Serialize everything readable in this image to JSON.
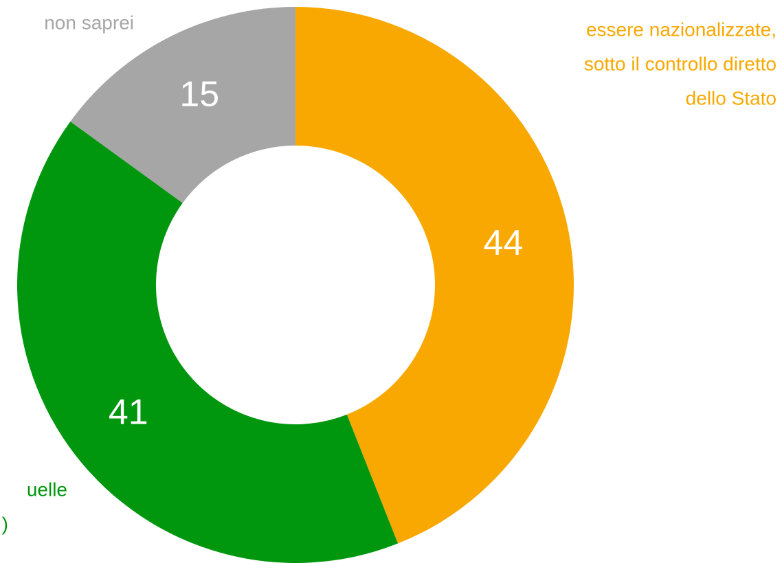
{
  "chart_data": {
    "type": "donut",
    "categories": [
      [
        "essere nazionalizzate,",
        "sotto il controllo diretto",
        "dello Stato"
      ],
      [
        "uelle",
        ")"
      ],
      [
        "non saprei"
      ]
    ],
    "values": [
      44,
      41,
      15
    ],
    "colors": [
      "#f8a800",
      "#00960e",
      "#a6a6a6"
    ]
  }
}
